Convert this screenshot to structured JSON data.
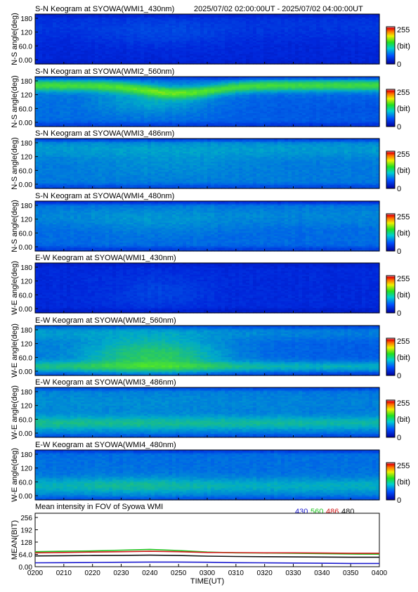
{
  "header": {
    "time_range": "2025/07/02 02:00:00UT - 2025/07/02 04:00:00UT"
  },
  "colorbar": {
    "max_label": "255",
    "unit_label": "(bit)",
    "min_label": "0"
  },
  "keograms": [
    {
      "title": "S-N Keogram at SYOWA(WMI1_430nm)",
      "ylabel": "N-S angle(deg)",
      "yticks": [
        "180",
        "120",
        "60.0",
        "0.00"
      ],
      "mode": "ns1"
    },
    {
      "title": "S-N Keogram at SYOWA(WMI2_560nm)",
      "ylabel": "N-S angle(deg)",
      "yticks": [
        "180",
        "120",
        "60.0",
        "0.00"
      ],
      "mode": "ns2"
    },
    {
      "title": "S-N Keogram at SYOWA(WMI3_486nm)",
      "ylabel": "N-S angle(deg)",
      "yticks": [
        "180",
        "120",
        "60.0",
        "0.00"
      ],
      "mode": "ns3"
    },
    {
      "title": "S-N Keogram at SYOWA(WMI4_480nm)",
      "ylabel": "N-S angle(deg)",
      "yticks": [
        "180",
        "120",
        "60.0",
        "0.00"
      ],
      "mode": "ns4"
    },
    {
      "title": "E-W Keogram at SYOWA(WMI1_430nm)",
      "ylabel": "W-E angle(deg)",
      "yticks": [
        "180",
        "120",
        "60.0",
        "0.00"
      ],
      "mode": "ew1"
    },
    {
      "title": "E-W Keogram at SYOWA(WMI2_560nm)",
      "ylabel": "W-E angle(deg)",
      "yticks": [
        "180",
        "120",
        "60.0",
        "0.00"
      ],
      "mode": "ew2"
    },
    {
      "title": "E-W Keogram at SYOWA(WMI3_486nm)",
      "ylabel": "W-E angle(deg)",
      "yticks": [
        "180",
        "120",
        "60.0",
        "0.00"
      ],
      "mode": "ew3"
    },
    {
      "title": "E-W Keogram at SYOWA(WMI4_480nm)",
      "ylabel": "W-E angle(deg)",
      "yticks": [
        "180",
        "120",
        "60.0",
        "0.00"
      ],
      "mode": "ew4"
    }
  ],
  "chart_data": {
    "type": "line",
    "title": "Mean intensity in FOV of Syowa WMI",
    "xlabel": "TIME(UT)",
    "ylabel": "MEAN(BIT)",
    "x_ticks": [
      "0200",
      "0210",
      "0220",
      "0230",
      "0240",
      "0250",
      "0300",
      "0310",
      "0320",
      "0330",
      "0340",
      "0350",
      "0400"
    ],
    "x_minutes": [
      0,
      10,
      20,
      30,
      40,
      50,
      60,
      70,
      80,
      90,
      100,
      110,
      120
    ],
    "y_ticks": [
      "256",
      "192",
      "128",
      "64.0",
      "0.00"
    ],
    "y_tick_values": [
      256,
      192,
      128,
      64,
      0
    ],
    "ylim": [
      0,
      256
    ],
    "series": [
      {
        "name": "430",
        "color": "#1c1ccf",
        "values": [
          20,
          21,
          22,
          23,
          24,
          24,
          23,
          21,
          20,
          19,
          18,
          17,
          17
        ]
      },
      {
        "name": "560",
        "color": "#1fc41f",
        "values": [
          78,
          80,
          82,
          86,
          90,
          84,
          76,
          72,
          71,
          70,
          68,
          66,
          65
        ]
      },
      {
        "name": "486",
        "color": "#d11a1a",
        "values": [
          72,
          74,
          76,
          78,
          80,
          78,
          74,
          73,
          72,
          72,
          71,
          70,
          70
        ]
      },
      {
        "name": "480",
        "color": "#111111",
        "values": [
          56,
          57,
          58,
          59,
          60,
          58,
          55,
          53,
          52,
          51,
          50,
          49,
          49
        ]
      }
    ]
  }
}
